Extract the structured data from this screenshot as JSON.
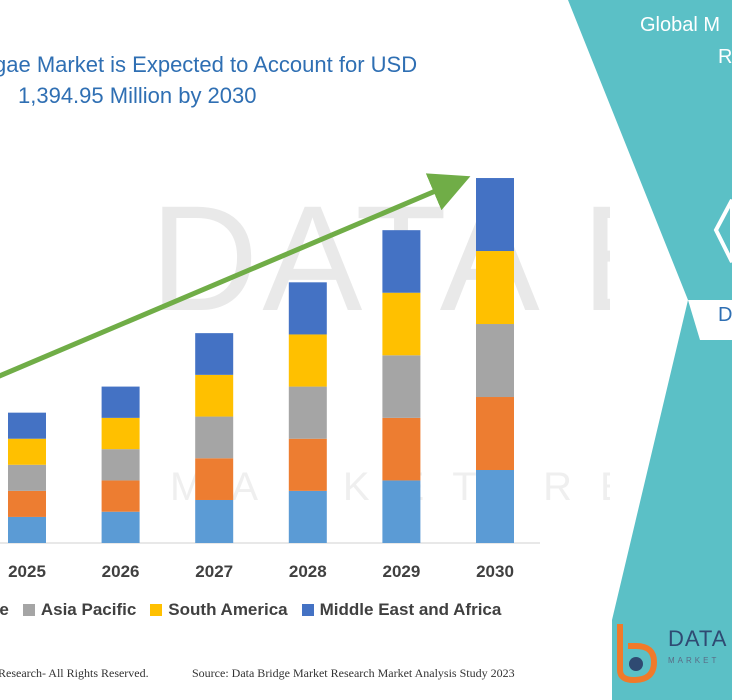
{
  "title": {
    "line1": "gae Market is Expected to Account for USD",
    "line2": "1,394.95 Million by 2030"
  },
  "right_panel": {
    "heading_line1": "Global M",
    "heading_line2": "R",
    "partial_text": "D",
    "color": "#5bc0c6"
  },
  "watermark": {
    "text": "DATA BRI",
    "sub": "MARKET REVIEW"
  },
  "logo": {
    "name": "DATA I",
    "sub": "MARKET"
  },
  "footer": {
    "left": "Research- All Rights Reserved.",
    "right": "Source: Data Bridge Market Research Market Analysis Study 2023"
  },
  "chart_data": {
    "type": "bar",
    "stacked": true,
    "categories": [
      "2025",
      "2026",
      "2027",
      "2028",
      "2029",
      "2030"
    ],
    "series": [
      {
        "name": "",
        "color": "#5b9bd5",
        "values": [
          1.0,
          1.2,
          1.65,
          2.0,
          2.4,
          2.8
        ]
      },
      {
        "name": "",
        "color": "#ed7d31",
        "values": [
          1.0,
          1.2,
          1.6,
          2.0,
          2.4,
          2.8
        ]
      },
      {
        "name": "Asia Pacific",
        "color": "#a5a5a5",
        "values": [
          1.0,
          1.2,
          1.6,
          2.0,
          2.4,
          2.8
        ]
      },
      {
        "name": "South America",
        "color": "#ffc000",
        "values": [
          1.0,
          1.2,
          1.6,
          2.0,
          2.4,
          2.8
        ]
      },
      {
        "name": "Middle East and Africa",
        "color": "#4472c4",
        "values": [
          1.0,
          1.2,
          1.6,
          2.0,
          2.4,
          2.8
        ]
      }
    ],
    "legend": [
      {
        "label": "rope",
        "color": "#ed7d31"
      },
      {
        "label": "Asia Pacific",
        "color": "#a5a5a5"
      },
      {
        "label": "South America",
        "color": "#ffc000"
      },
      {
        "label": "Middle East and Africa",
        "color": "#4472c4"
      }
    ],
    "trend_arrow": {
      "color": "#70ad47"
    },
    "ylim": [
      0,
      14.5
    ],
    "grid": false
  }
}
